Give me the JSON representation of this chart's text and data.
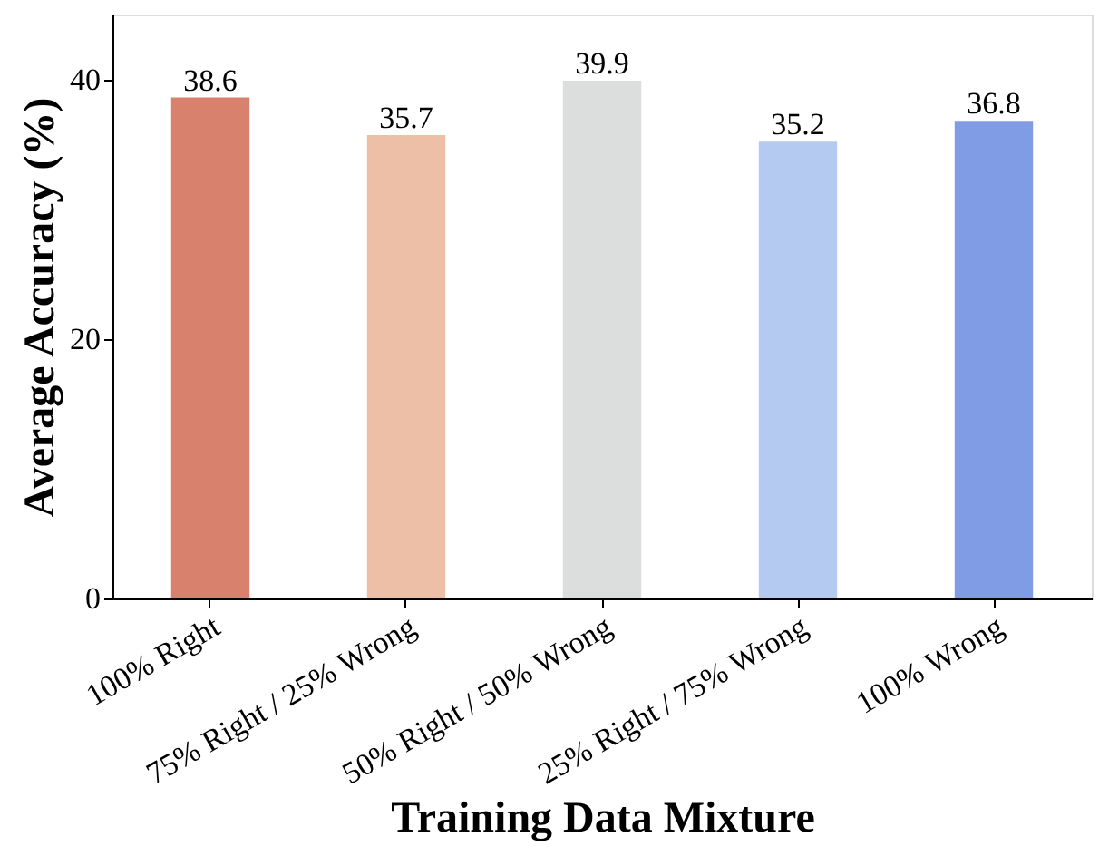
{
  "chart_data": {
    "type": "bar",
    "xlabel": "Training Data Mixture",
    "ylabel": "Average Accuracy (%)",
    "categories": [
      "100% Right",
      "75% Right / 25% Wrong",
      "50% Right / 50% Wrong",
      "25% Right / 75% Wrong",
      "100% Wrong"
    ],
    "values": [
      38.6,
      35.7,
      39.9,
      35.2,
      36.8
    ],
    "colors": [
      "#d8826e",
      "#edbfa6",
      "#dcdddd",
      "#b5caf1",
      "#7f9ce5"
    ],
    "ylim": [
      0,
      45
    ],
    "yticks": [
      0,
      20,
      40
    ],
    "grid": false,
    "data_labels": true
  }
}
